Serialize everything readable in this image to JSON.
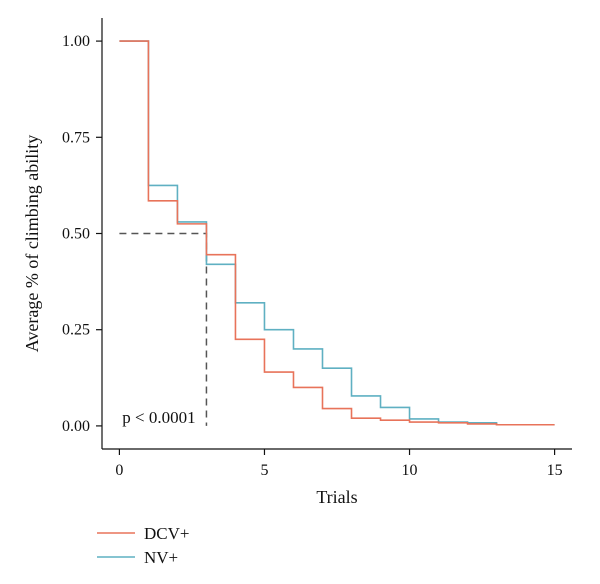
{
  "chart_data": {
    "type": "line",
    "step": true,
    "xlabel": "Trials",
    "ylabel": "Average % of climbing ability",
    "xlim": [
      -0.6,
      15.6
    ],
    "ylim": [
      -0.06,
      1.06
    ],
    "x_ticks": [
      0,
      5,
      10,
      15
    ],
    "x_tick_labels": [
      "0",
      "5",
      "10",
      "15"
    ],
    "y_ticks": [
      0.0,
      0.25,
      0.5,
      0.75,
      1.0
    ],
    "y_tick_labels": [
      "0.00",
      "0.25",
      "0.50",
      "0.75",
      "1.00"
    ],
    "grid": false,
    "legend_position": "bottom-left",
    "annotation": {
      "text": "p < 0.0001",
      "x": 0.1,
      "y": 0.02
    },
    "median_reference": {
      "y": 0.5,
      "x": 3.0,
      "style": "dashed"
    },
    "series": [
      {
        "name": "DCV+",
        "color": "#e8735a",
        "x": [
          0,
          1,
          2,
          3,
          4,
          5,
          6,
          7,
          8,
          9,
          10,
          11,
          12,
          13,
          15
        ],
        "y": [
          1.0,
          0.585,
          0.525,
          0.445,
          0.225,
          0.14,
          0.1,
          0.045,
          0.02,
          0.015,
          0.01,
          0.008,
          0.005,
          0.003,
          0.003
        ]
      },
      {
        "name": "NV+",
        "color": "#5fb0c2",
        "x": [
          0,
          1,
          2,
          3,
          4,
          5,
          6,
          7,
          8,
          9,
          10,
          11,
          12,
          13,
          15
        ],
        "y": [
          1.0,
          0.625,
          0.53,
          0.42,
          0.32,
          0.25,
          0.2,
          0.15,
          0.078,
          0.048,
          0.018,
          0.01,
          0.008,
          0.003,
          0.003
        ]
      }
    ]
  }
}
